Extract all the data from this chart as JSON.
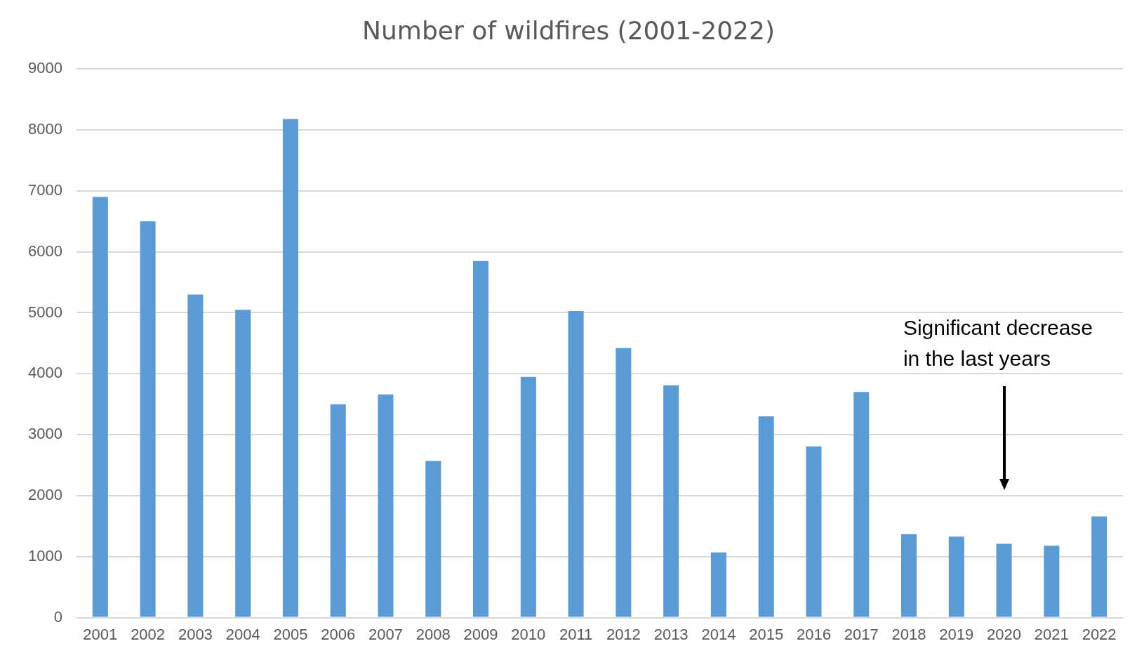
{
  "chart_data": {
    "type": "bar",
    "title": "Number of wildfires (2001-2022)",
    "categories": [
      "2001",
      "2002",
      "2003",
      "2004",
      "2005",
      "2006",
      "2007",
      "2008",
      "2009",
      "2010",
      "2011",
      "2012",
      "2013",
      "2014",
      "2015",
      "2016",
      "2017",
      "2018",
      "2019",
      "2020",
      "2021",
      "2022"
    ],
    "values": [
      6900,
      6500,
      5300,
      5050,
      8180,
      3500,
      3660,
      2570,
      5850,
      3950,
      5030,
      4420,
      3810,
      1070,
      3300,
      2810,
      3700,
      1370,
      1330,
      1210,
      1180,
      1660
    ],
    "color": "#5b9bd5",
    "ylim": [
      0,
      9000
    ],
    "yticks": [
      0,
      1000,
      2000,
      3000,
      4000,
      5000,
      6000,
      7000,
      8000,
      9000
    ],
    "grid": "y",
    "annotations": [
      "Significant decrease\nin the last years"
    ]
  }
}
